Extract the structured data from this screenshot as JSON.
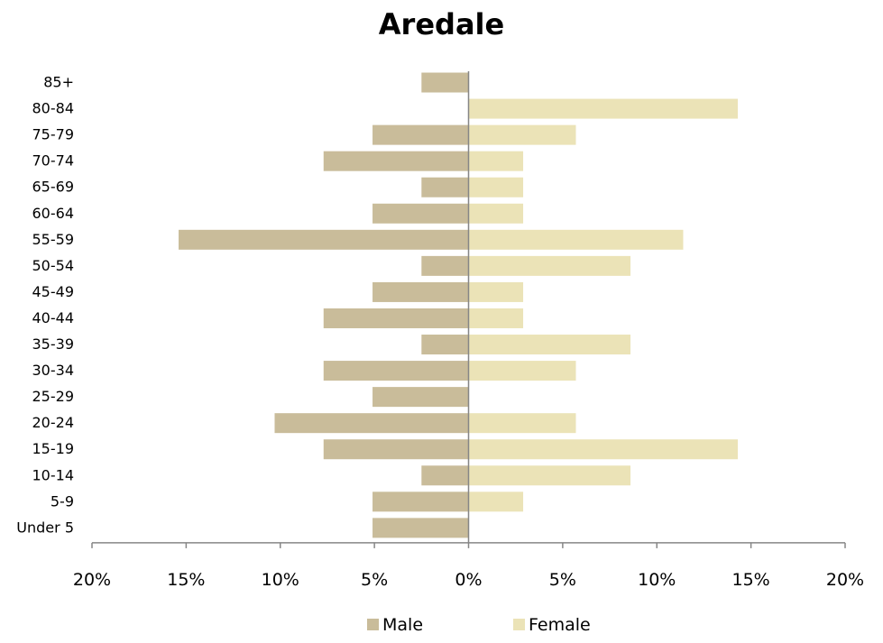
{
  "chart_data": {
    "type": "bar",
    "orientation": "horizontal",
    "subtype": "population-pyramid",
    "title": "Aredale",
    "categories": [
      "85+",
      "80-84",
      "75-79",
      "70-74",
      "65-69",
      "60-64",
      "55-59",
      "50-54",
      "45-49",
      "40-44",
      "35-39",
      "30-34",
      "25-29",
      "20-24",
      "15-19",
      "10-14",
      "5-9",
      "Under 5"
    ],
    "series": [
      {
        "name": "Male",
        "color": "#c9bc9a",
        "side": "left",
        "values": [
          2.5,
          0,
          5.1,
          7.7,
          2.5,
          5.1,
          15.4,
          2.5,
          5.1,
          7.7,
          2.5,
          7.7,
          5.1,
          10.3,
          7.7,
          2.5,
          5.1,
          5.1
        ]
      },
      {
        "name": "Female",
        "color": "#ebe3b7",
        "side": "right",
        "values": [
          0,
          14.3,
          5.7,
          2.9,
          2.9,
          2.9,
          11.4,
          8.6,
          2.9,
          2.9,
          8.6,
          5.7,
          0,
          5.7,
          14.3,
          8.6,
          2.9,
          0
        ]
      }
    ],
    "x_ticks": [
      "20%",
      "15%",
      "10%",
      "5%",
      "0%",
      "5%",
      "10%",
      "15%",
      "20%"
    ],
    "xlim": [
      -20,
      20
    ],
    "grid": false,
    "legend": "bottom",
    "axis_color": "#868686"
  }
}
